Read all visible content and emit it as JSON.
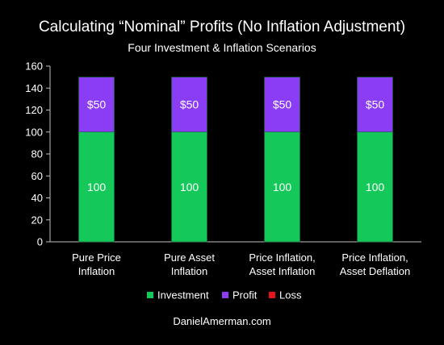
{
  "chart_data": {
    "type": "bar",
    "stacked": true,
    "title": "Calculating “Nominal” Profits (No Inflation Adjustment)",
    "subtitle": "Four Investment & Inflation Scenarios",
    "categories": [
      [
        "Pure Price",
        "Inflation"
      ],
      [
        "Pure Asset",
        "Inflation"
      ],
      [
        "Price Inflation,",
        "Asset Inflation"
      ],
      [
        "Price Inflation,",
        "Asset Deflation"
      ]
    ],
    "series": [
      {
        "name": "Investment",
        "values": [
          100,
          100,
          100,
          100
        ],
        "labels": [
          "100",
          "100",
          "100",
          "100"
        ],
        "color": "#14c95a"
      },
      {
        "name": "Profit",
        "values": [
          50,
          50,
          50,
          50
        ],
        "labels": [
          "$50",
          "$50",
          "$50",
          "$50"
        ],
        "color": "#8a3df5"
      },
      {
        "name": "Loss",
        "values": [
          0,
          0,
          0,
          0
        ],
        "labels": [
          "",
          "",
          "",
          ""
        ],
        "color": "#e5141b"
      }
    ],
    "ylim": [
      0,
      160
    ],
    "yticks": [
      0,
      20,
      40,
      60,
      80,
      100,
      120,
      140,
      160
    ],
    "xlabel": "",
    "ylabel": "",
    "grid": false,
    "legend_position": "bottom"
  },
  "footer": {
    "credit": "DanielAmerman.com"
  }
}
